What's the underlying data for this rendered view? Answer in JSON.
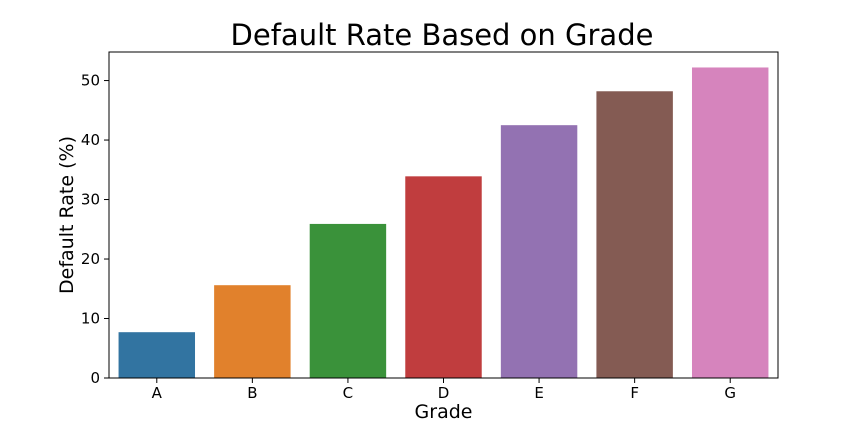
{
  "chart_data": {
    "type": "bar",
    "title": "Default Rate Based on Grade",
    "xlabel": "Grade",
    "ylabel": "Default Rate (%)",
    "categories": [
      "A",
      "B",
      "C",
      "D",
      "E",
      "F",
      "G"
    ],
    "values": [
      7.7,
      15.6,
      25.9,
      33.9,
      42.5,
      48.2,
      52.2
    ],
    "ylim": [
      0,
      54.8
    ],
    "yticks": [
      0,
      10,
      20,
      30,
      40,
      50
    ],
    "colors": [
      "#3274a1",
      "#e1812c",
      "#3a923a",
      "#c03d3e",
      "#9372b2",
      "#845b53",
      "#d684bd"
    ],
    "grid": false,
    "legend": "none"
  }
}
